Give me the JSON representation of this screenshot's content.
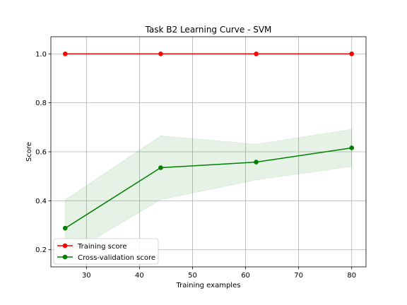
{
  "chart_data": {
    "type": "line",
    "title": "Task B2 Learning Curve - SVM",
    "xlabel": "Training examples",
    "ylabel": "Score",
    "xlim": [
      23.3,
      82.7
    ],
    "ylim": [
      0.13,
      1.07
    ],
    "xticks": [
      30,
      40,
      50,
      60,
      70,
      80
    ],
    "yticks": [
      0.2,
      0.4,
      0.6,
      0.8,
      1.0
    ],
    "xtick_labels": [
      "30",
      "40",
      "50",
      "60",
      "70",
      "80"
    ],
    "ytick_labels": [
      "0.2",
      "0.4",
      "0.6",
      "0.8",
      "1.0"
    ],
    "grid": true,
    "legend_position": "lower-left",
    "x": [
      26,
      44,
      62,
      80
    ],
    "series": [
      {
        "name": "Training score",
        "color": "#ff0000",
        "values": [
          1.0,
          1.0,
          1.0,
          1.0
        ],
        "band_low": [
          1.0,
          1.0,
          1.0,
          1.0
        ],
        "band_high": [
          1.0,
          1.0,
          1.0,
          1.0
        ]
      },
      {
        "name": "Cross-validation score",
        "color": "#008000",
        "values": [
          0.288,
          0.535,
          0.558,
          0.616
        ],
        "band_low": [
          0.172,
          0.405,
          0.485,
          0.54
        ],
        "band_high": [
          0.404,
          0.665,
          0.631,
          0.692
        ]
      }
    ]
  }
}
